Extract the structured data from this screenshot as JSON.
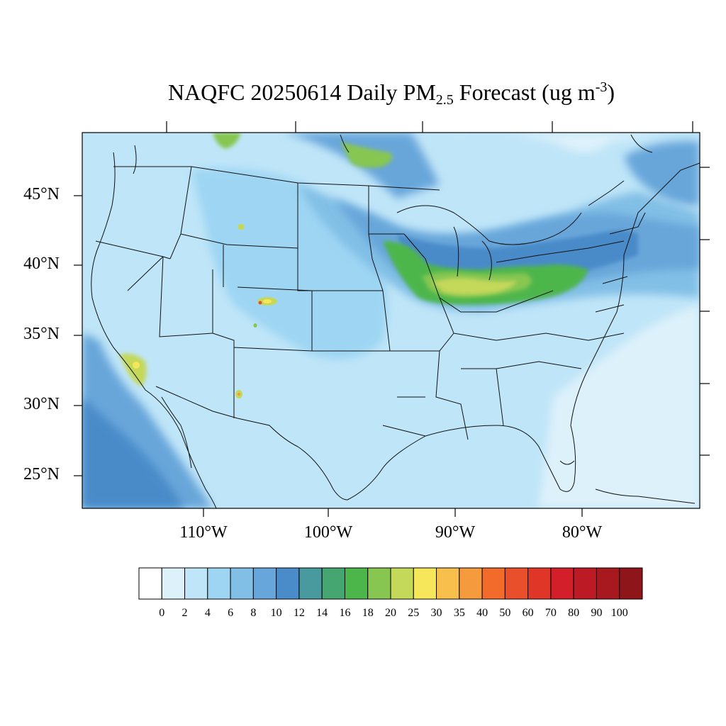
{
  "title": {
    "main": "NAQFC 20250614 Daily PM",
    "subscript": "2.5",
    "suffix": " Forecast (ug m",
    "superscript": "-3",
    "close": ")"
  },
  "lat_labels": [
    "45°N",
    "40°N",
    "35°N",
    "30°N",
    "25°N"
  ],
  "lon_labels": [
    "110°W",
    "100°W",
    "90°W",
    "80°W"
  ],
  "colorbar": {
    "tick_labels": [
      "0",
      "2",
      "4",
      "6",
      "8",
      "10",
      "12",
      "14",
      "16",
      "18",
      "20",
      "25",
      "30",
      "35",
      "40",
      "50",
      "60",
      "70",
      "80",
      "90",
      "100"
    ],
    "colors": [
      "#ffffff",
      "#ddf1fb",
      "#bfe5f8",
      "#9dd5f3",
      "#82bfe6",
      "#67a6da",
      "#4a8bc9",
      "#489a9f",
      "#45a671",
      "#4db64b",
      "#86c651",
      "#c4d85a",
      "#f6e75a",
      "#f8bf4c",
      "#f59a3d",
      "#f26b2b",
      "#e94f2b",
      "#df3627",
      "#d21f2a",
      "#bc1a25",
      "#a8191f",
      "#8e1519"
    ]
  },
  "colors": {
    "ocean": "#bfe5f8",
    "land_base": "#bfe5f8",
    "atlantic": "#ddf1fb",
    "boundary": "#111111"
  }
}
